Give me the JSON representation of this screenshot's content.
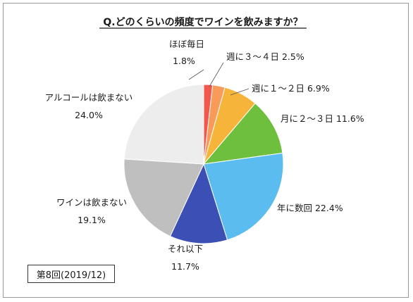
{
  "chart_data": {
    "type": "pie",
    "title": "Q.どのくらいの頻度でワインを飲みますか？",
    "start_angle_deg": 0,
    "direction": "clockwise",
    "slices": [
      {
        "label": "ほぼ毎日",
        "value": 1.8,
        "value_text": "1.8%",
        "color": "#f0574d"
      },
      {
        "label": "週に３～４日",
        "value": 2.5,
        "value_text": "2.5%",
        "color": "#f79a5a"
      },
      {
        "label": "週に１～２日",
        "value": 6.9,
        "value_text": "6.9%",
        "color": "#f7b43a"
      },
      {
        "label": "月に２～３日",
        "value": 11.6,
        "value_text": "11.6%",
        "color": "#6fbf3e"
      },
      {
        "label": "年に数回",
        "value": 22.4,
        "value_text": "22.4%",
        "color": "#5bbcf0"
      },
      {
        "label": "それ以下",
        "value": 11.7,
        "value_text": "11.7%",
        "color": "#3c4fb5"
      },
      {
        "label": "ワインは飲まない",
        "value": 19.1,
        "value_text": "19.1%",
        "color": "#bfbfbf"
      },
      {
        "label": "アルコールは飲まない",
        "value": 24.0,
        "value_text": "24.0%",
        "color": "#ededed"
      }
    ]
  },
  "note": "第8回(2019/12)"
}
